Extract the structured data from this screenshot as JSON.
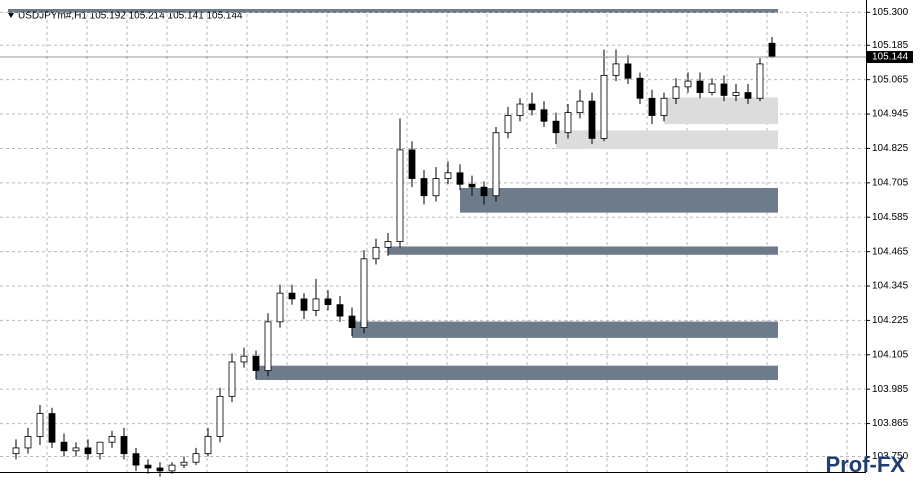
{
  "chart_data": {
    "type": "candlestick",
    "title": "USDJPYm#,H1  105.192 105.214 105.141 105.144",
    "up_color": "#ffffff",
    "down_color": "#000000",
    "grid": true,
    "ylim": [
      103.696,
      105.343
    ],
    "yticks": [
      {
        "value": 105.3,
        "label": "105.300"
      },
      {
        "value": 105.185,
        "label": "105.185"
      },
      {
        "value": 105.065,
        "label": "105.065"
      },
      {
        "value": 104.945,
        "label": "104.945"
      },
      {
        "value": 104.825,
        "label": "104.825"
      },
      {
        "value": 104.705,
        "label": "104.705"
      },
      {
        "value": 104.585,
        "label": "104.585"
      },
      {
        "value": 104.465,
        "label": "104.465"
      },
      {
        "value": 104.345,
        "label": "104.345"
      },
      {
        "value": 104.225,
        "label": "104.225"
      },
      {
        "value": 104.105,
        "label": "104.105"
      },
      {
        "value": 103.985,
        "label": "103.985"
      },
      {
        "value": 103.865,
        "label": "103.865"
      },
      {
        "value": 103.75,
        "label": "103.750"
      }
    ],
    "current_price": {
      "value": 105.144,
      "label": "105.144"
    },
    "open": [
      103.76,
      103.78,
      103.82,
      103.9,
      103.8,
      103.77,
      103.78,
      103.76,
      103.8,
      103.82,
      103.76,
      103.72,
      103.71,
      103.7,
      103.72,
      103.73,
      103.76,
      103.82,
      103.96,
      104.08,
      104.1,
      104.05,
      104.22,
      104.32,
      104.3,
      104.26,
      104.3,
      104.28,
      104.24,
      104.2,
      104.44,
      104.48,
      104.5,
      104.82,
      104.72,
      104.66,
      104.72,
      104.74,
      104.7,
      104.69,
      104.66,
      104.88,
      104.94,
      104.98,
      104.96,
      104.92,
      104.88,
      104.95,
      104.99,
      104.86,
      105.08,
      105.12,
      105.07,
      105.0,
      104.94,
      105.0,
      105.04,
      105.06,
      105.02,
      105.05,
      105.01,
      105.02,
      105.0,
      105.192
    ],
    "high": [
      103.81,
      103.85,
      103.93,
      103.92,
      103.83,
      103.8,
      103.81,
      103.79,
      103.84,
      103.85,
      103.78,
      103.74,
      103.73,
      103.73,
      103.75,
      103.78,
      103.85,
      103.99,
      104.11,
      104.13,
      104.12,
      104.25,
      104.35,
      104.35,
      104.32,
      104.37,
      104.33,
      104.31,
      104.27,
      104.47,
      104.51,
      104.53,
      104.93,
      104.85,
      104.75,
      104.76,
      104.78,
      104.77,
      104.73,
      104.71,
      104.9,
      104.97,
      105.0,
      105.02,
      104.99,
      104.95,
      104.98,
      105.03,
      105.02,
      105.17,
      105.17,
      105.15,
      105.09,
      105.03,
      105.02,
      105.07,
      105.09,
      105.09,
      105.07,
      105.08,
      105.05,
      105.05,
      105.14,
      105.214
    ],
    "low": [
      103.74,
      103.76,
      103.79,
      103.78,
      103.75,
      103.75,
      103.74,
      103.74,
      103.78,
      103.74,
      103.7,
      103.69,
      103.68,
      103.69,
      103.71,
      103.72,
      103.75,
      103.8,
      103.94,
      104.06,
      104.02,
      104.03,
      104.2,
      104.28,
      104.23,
      104.24,
      104.26,
      104.22,
      104.17,
      104.18,
      104.42,
      104.45,
      104.48,
      104.69,
      104.63,
      104.64,
      104.7,
      104.68,
      104.66,
      104.63,
      104.64,
      104.86,
      104.92,
      104.94,
      104.9,
      104.84,
      104.86,
      104.93,
      104.84,
      104.85,
      105.06,
      105.05,
      104.98,
      104.91,
      104.92,
      104.98,
      105.02,
      105.0,
      105.01,
      104.99,
      104.99,
      104.98,
      104.99,
      105.141
    ],
    "close": [
      103.78,
      103.82,
      103.9,
      103.8,
      103.77,
      103.78,
      103.76,
      103.8,
      103.82,
      103.76,
      103.72,
      103.71,
      103.7,
      103.72,
      103.73,
      103.76,
      103.82,
      103.96,
      104.08,
      104.1,
      104.05,
      104.22,
      104.32,
      104.3,
      104.26,
      104.3,
      104.28,
      104.24,
      104.2,
      104.44,
      104.48,
      104.5,
      104.82,
      104.72,
      104.66,
      104.72,
      104.74,
      104.7,
      104.69,
      104.66,
      104.88,
      104.94,
      104.98,
      104.96,
      104.92,
      104.88,
      104.95,
      104.99,
      104.86,
      105.08,
      105.12,
      105.07,
      105.0,
      104.94,
      105.0,
      105.04,
      105.06,
      105.02,
      105.05,
      105.01,
      105.02,
      105.0,
      105.12,
      105.144
    ],
    "zones": [
      {
        "from": 105.003,
        "to": 104.91,
        "start": 54,
        "color": "#dcdcdc"
      },
      {
        "from": 104.888,
        "to": 104.823,
        "start": 45,
        "color": "#dcdcdc"
      },
      {
        "from": 104.687,
        "to": 104.601,
        "start": 37,
        "color": "#6e7b8b"
      },
      {
        "from": 104.483,
        "to": 104.454,
        "start": 31,
        "color": "#6e7b8b"
      },
      {
        "from": 104.221,
        "to": 104.164,
        "start": 28,
        "color": "#6e7b8b"
      },
      {
        "from": 104.067,
        "to": 104.017,
        "start": 20,
        "color": "#6e7b8b"
      }
    ],
    "watermark": "Prof-FX"
  }
}
